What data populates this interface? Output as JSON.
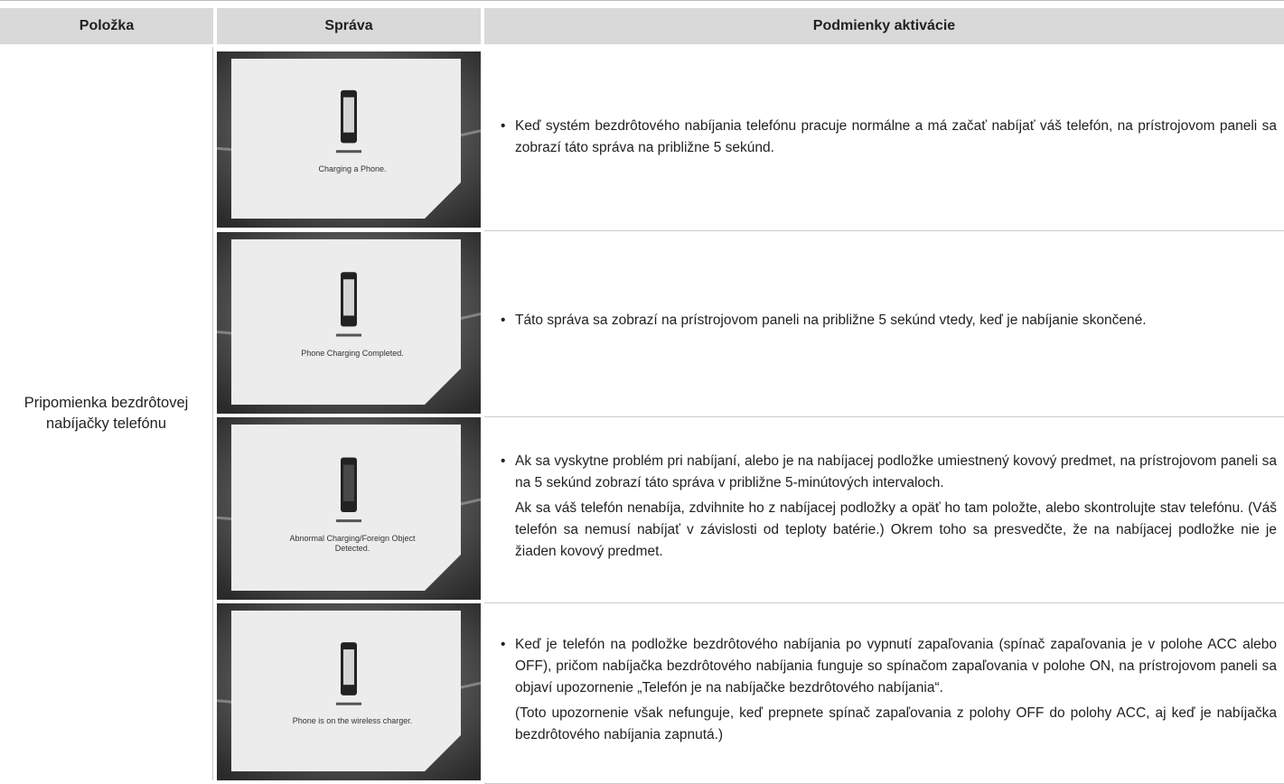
{
  "table": {
    "header": [
      "Položka",
      "Správa",
      "Podmienky aktivácie"
    ],
    "item": "Pripomienka bezdrôtovej nabíjačky telefónu",
    "rows": [
      {
        "message": "Charging a Phone.",
        "conditions": [
          "Keď systém bezdrôtového nabíjania telefónu pracuje normálne a má začať nabíjať váš telefón, na prístrojovom paneli sa zobrazí táto správa na približne 5 sekúnd."
        ]
      },
      {
        "message": "Phone Charging Completed.",
        "conditions": [
          "Táto správa sa zobrazí na prístrojovom paneli na približne 5 sekúnd vtedy, keď je nabíjanie skončené."
        ]
      },
      {
        "message": "Abnormal Charging/Foreign Object Detected.",
        "conditions": [
          "Ak sa vyskytne problém pri nabíjaní, alebo je na nabíjacej podložke umiestnený kovový predmet, na prístrojovom paneli sa na 5 sekúnd zobrazí táto správa v približne 5-minútových intervaloch.",
          "Ak sa váš telefón nenabíja, zdvihnite ho z nabíjacej podložky a opäť ho tam položte, alebo skontrolujte stav telefónu. (Váš telefón sa nemusí nabíjať v závislosti od teploty batérie.) Okrem toho sa presvedčte, že na nabíjacej podložke nie je žiaden kovový predmet."
        ]
      },
      {
        "message": "Phone is on the wireless charger.",
        "conditions": [
          "Keď je telefón na podložke bezdrôtového nabíjania po vypnutí zapaľovania (spínač zapaľovania je v polohe ACC alebo OFF), pričom nabíjačka bezdrôtového nabíjania funguje so spínačom zapaľovania v polohe ON, na prístrojovom paneli sa objaví upozornenie „Telefón je na nabíjačke bezdrôtového nabíjania“.",
          "(Toto upozornenie však nefunguje, keď prepnete spínač zapaľovania z polohy OFF do polohy ACC, aj keď je nabíjačka bezdrôtového nabíjania zapnutá.)"
        ]
      }
    ]
  }
}
